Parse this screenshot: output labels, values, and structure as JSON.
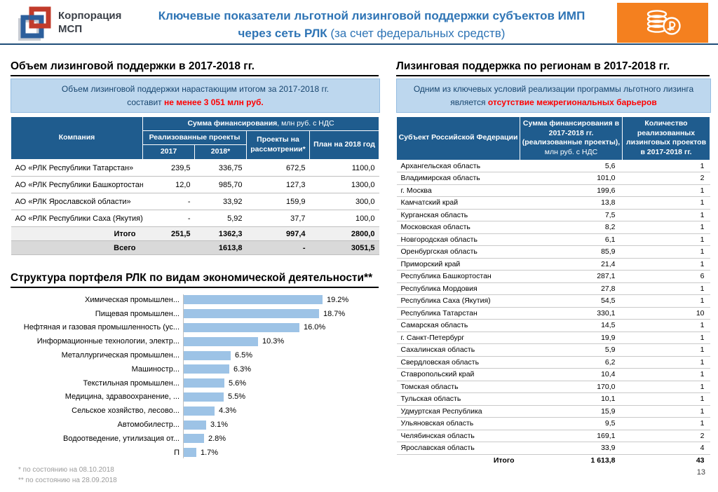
{
  "header": {
    "logo_line1": "Корпорация",
    "logo_line2": "МСП",
    "title_line1": "Ключевые показатели льготной лизинговой поддержки субъектов ИМП",
    "title_line2_bold": "через сеть РЛК",
    "title_line2_rest": " (за счет федеральных средств)"
  },
  "colors": {
    "accent_blue": "#2E74B5",
    "table_header_bg": "#1F5C8E",
    "info_box_bg": "#BDD7EE",
    "bar_fill": "#9DC3E6",
    "alert_red": "#FF0000",
    "brand_orange": "#F4801F",
    "logo_red": "#C13B2B",
    "logo_blue": "#2C5F9C"
  },
  "left_section": {
    "title": "Объем лизинговой поддержки в 2017-2018 гг.",
    "info_line1": "Объем лизинговой поддержки нарастающим итогом за 2017-2018 гг.",
    "info_line2_prefix": "составит ",
    "info_line2_red": "не менее 3 051 млн руб.",
    "table": {
      "header": {
        "company": "Компания",
        "financing_bold": "Сумма финансирования",
        "financing_rest": ", млн руб. с НДС",
        "realized": "Реализованные проекты",
        "y2017": "2017",
        "y2018": "2018*",
        "pending": "Проекты на рассмотрении*",
        "plan": "План на 2018 год"
      },
      "rows": [
        {
          "company": "АО «РЛК Республики Татарстан»",
          "y2017": "239,5",
          "y2018": "336,75",
          "pending": "672,5",
          "plan": "1100,0"
        },
        {
          "company": "АО «РЛК Республики Башкортостан»",
          "y2017": "12,0",
          "y2018": "985,70",
          "pending": "127,3",
          "plan": "1300,0"
        },
        {
          "company": "АО «РЛК Ярославской области»",
          "y2017": "-",
          "y2018": "33,92",
          "pending": "159,9",
          "plan": "300,0"
        },
        {
          "company": "АО «РЛК Республики Саха (Якутия)»",
          "y2017": "-",
          "y2018": "5,92",
          "pending": "37,7",
          "plan": "100,0"
        }
      ],
      "itogo": {
        "label": "Итого",
        "y2017": "251,5",
        "y2018": "1362,3",
        "pending": "997,4",
        "plan": "2800,0"
      },
      "vsego": {
        "label": "Всего",
        "realized_total": "1613,8",
        "pending": "-",
        "plan": "3051,5"
      }
    }
  },
  "chart_section": {
    "title": "Структура портфеля РЛК по видам экономической деятельности**"
  },
  "chart_data": {
    "type": "bar",
    "orientation": "horizontal",
    "title": "Структура портфеля РЛК по видам экономической деятельности**",
    "categories": [
      "Химическая промышлен...",
      "Пищевая промышлен...",
      "Нефтяная и газовая промышленность (ус...",
      "Информационные технологии, электр...",
      "Металлургическая промышлен...",
      "Машиностр...",
      "Текстильная промышлен...",
      "Медицина, здравоохранение, ...",
      "Сельское хозяйство, лесово...",
      "Автомобилестр...",
      "Водоотведение, утилизация от...",
      "П"
    ],
    "values": [
      19.2,
      18.7,
      16.0,
      10.3,
      6.5,
      6.3,
      5.6,
      5.5,
      4.3,
      3.1,
      2.8,
      1.7
    ],
    "value_labels": [
      "19.2%",
      "18.7%",
      "16.0%",
      "10.3%",
      "6.5%",
      "6.3%",
      "5.6%",
      "5.5%",
      "4.3%",
      "3.1%",
      "2.8%",
      "1.7%"
    ],
    "unit": "%",
    "xlim": [
      0,
      20
    ],
    "grid": false,
    "legend": false,
    "bar_color": "#9DC3E6"
  },
  "right_section": {
    "title": "Лизинговая поддержка по регионам в 2017-2018 гг.",
    "info_line1": "Одним из ключевых условий реализации программы льготного лизинга",
    "info_line2_prefix": "является ",
    "info_line2_red": "отсутствие межрегиональных барьеров",
    "table": {
      "header": {
        "region": "Субъект Российской Федерации",
        "sum_bold": "Сумма финансирования в 2017-2018 гг. (реализованные проекты),",
        "sum_rest": " млн руб. с НДС",
        "count": "Количество реализованных лизинговых проектов в 2017-2018 гг."
      },
      "rows": [
        {
          "region": "Архангельская область",
          "sum": "5,6",
          "count": "1"
        },
        {
          "region": "Владимирская область",
          "sum": "101,0",
          "count": "2"
        },
        {
          "region": "г. Москва",
          "sum": "199,6",
          "count": "1"
        },
        {
          "region": "Камчатский край",
          "sum": "13,8",
          "count": "1"
        },
        {
          "region": "Курганская область",
          "sum": "7,5",
          "count": "1"
        },
        {
          "region": "Московская область",
          "sum": "8,2",
          "count": "1"
        },
        {
          "region": "Новгородская область",
          "sum": "6,1",
          "count": "1"
        },
        {
          "region": "Оренбургская область",
          "sum": "85,9",
          "count": "1"
        },
        {
          "region": "Приморский край",
          "sum": "21,4",
          "count": "1"
        },
        {
          "region": "Республика Башкортостан",
          "sum": "287,1",
          "count": "6"
        },
        {
          "region": "Республика Мордовия",
          "sum": "27,8",
          "count": "1"
        },
        {
          "region": "Республика Саха (Якутия)",
          "sum": "54,5",
          "count": "1"
        },
        {
          "region": "Республика Татарстан",
          "sum": "330,1",
          "count": "10"
        },
        {
          "region": "Самарская область",
          "sum": "14,5",
          "count": "1"
        },
        {
          "region": "г. Санкт-Петербург",
          "sum": "19,9",
          "count": "1"
        },
        {
          "region": "Сахалинская область",
          "sum": "5,9",
          "count": "1"
        },
        {
          "region": "Свердловская область",
          "sum": "6,2",
          "count": "1"
        },
        {
          "region": "Ставропольский край",
          "sum": "10,4",
          "count": "1"
        },
        {
          "region": "Томская область",
          "sum": "170,0",
          "count": "1"
        },
        {
          "region": "Тульская область",
          "sum": "10,1",
          "count": "1"
        },
        {
          "region": "Удмуртская Республика",
          "sum": "15,9",
          "count": "1"
        },
        {
          "region": "Ульяновская область",
          "sum": "9,5",
          "count": "1"
        },
        {
          "region": "Челябинская область",
          "sum": "169,1",
          "count": "2"
        },
        {
          "region": "Ярославская область",
          "sum": "33,9",
          "count": "4"
        }
      ],
      "itogo": {
        "label": "Итого",
        "sum": "1 613,8",
        "count": "43"
      }
    }
  },
  "footnotes": [
    "*  по состоянию на 08.10.2018",
    "** по состоянию на 28.09.2018"
  ],
  "page_number": "13"
}
